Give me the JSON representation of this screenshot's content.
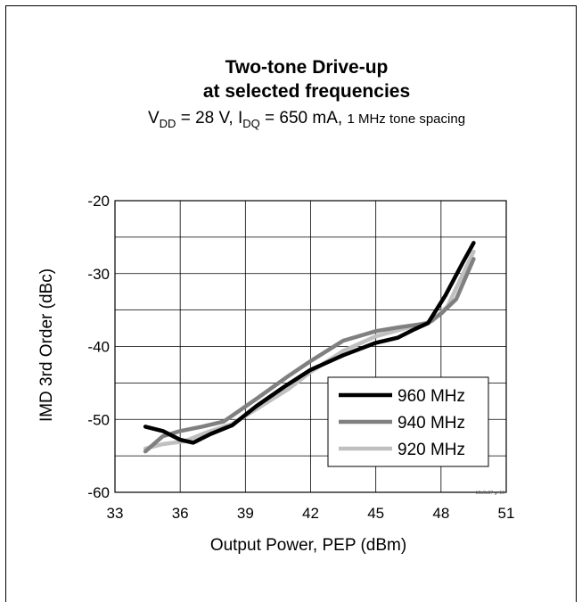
{
  "chart_data": {
    "type": "line",
    "title": "Two-tone Drive-up",
    "title_line2": "at selected frequencies",
    "subtitle": {
      "v": "V",
      "v_sub": "DD",
      "v_value": " = 28 V, I",
      "i_sub": "DQ",
      "i_value": " = 650 mA, ",
      "spacing": "1 MHz tone spacing"
    },
    "xlabel": "Output Power, PEP (dBm)",
    "ylabel": "IMD 3rd Order (dBc)",
    "xlim": [
      33,
      51
    ],
    "ylim": [
      -60,
      -20
    ],
    "xticks": [
      33,
      36,
      39,
      42,
      45,
      48,
      51
    ],
    "yticks": [
      -60,
      -50,
      -40,
      -30,
      -20
    ],
    "x_tick_labels": [
      "33",
      "36",
      "39",
      "42",
      "45",
      "48",
      "51"
    ],
    "y_tick_labels": [
      "-60",
      "-50",
      "-40",
      "-30",
      "-20"
    ],
    "grid": true,
    "legend_position": "bottom-right",
    "figure_code": "b0a0a07 gr 10",
    "series": [
      {
        "name": "960 MHz",
        "color": "#000000",
        "x": [
          34.4,
          35.2,
          36.0,
          36.6,
          37.4,
          38.4,
          39.5,
          40.8,
          42.0,
          43.5,
          45.0,
          46.0,
          46.8,
          47.4,
          48.2,
          49.0,
          49.5
        ],
        "y": [
          -51.0,
          -51.6,
          -52.8,
          -53.2,
          -52.0,
          -50.8,
          -48.2,
          -45.5,
          -43.2,
          -41.2,
          -39.5,
          -38.8,
          -37.6,
          -36.8,
          -33.0,
          -28.5,
          -25.8
        ]
      },
      {
        "name": "940 MHz",
        "color": "#808080",
        "x": [
          34.4,
          35.2,
          36.0,
          37.0,
          38.0,
          39.5,
          41.0,
          42.0,
          43.5,
          45.0,
          46.0,
          47.4,
          48.0,
          48.7,
          49.5
        ],
        "y": [
          -54.4,
          -52.3,
          -51.6,
          -51.0,
          -50.3,
          -47.2,
          -44.0,
          -42.0,
          -39.2,
          -37.9,
          -37.4,
          -36.8,
          -35.5,
          -33.5,
          -28.0
        ]
      },
      {
        "name": "920 MHz",
        "color": "#c0c0c0",
        "x": [
          34.4,
          35.2,
          36.2,
          37.2,
          38.4,
          39.5,
          41.0,
          42.0,
          43.5,
          45.0,
          46.0,
          47.0,
          47.6,
          48.3,
          49.5
        ],
        "y": [
          -54.0,
          -53.4,
          -53.0,
          -51.8,
          -50.6,
          -48.6,
          -45.8,
          -43.5,
          -40.6,
          -38.6,
          -37.8,
          -37.0,
          -36.5,
          -34.5,
          -27.0
        ]
      }
    ]
  }
}
